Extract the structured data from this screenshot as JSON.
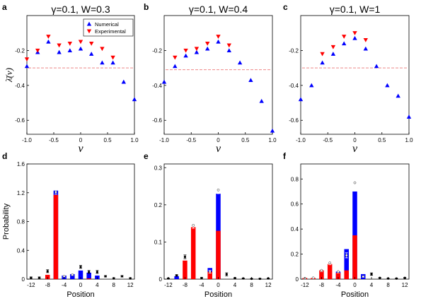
{
  "chart_data": [
    {
      "panel": "a",
      "type": "scatter",
      "title": "γ=0.1, W=0.3",
      "xlabel": "v",
      "ylabel": "λ̄(v)",
      "xlim": [
        -1.0,
        1.0
      ],
      "ylim": [
        -0.68,
        0.0
      ],
      "xticks": [
        "-1.0",
        "-0.5",
        "0",
        "0.5",
        "1.0"
      ],
      "yticks": [
        "-0.2",
        "-0.4",
        "-0.6"
      ],
      "reference_line": -0.3,
      "legend": {
        "position": "top-right",
        "entries": [
          "Numerical",
          "Experimental"
        ]
      },
      "series": [
        {
          "name": "Numerical",
          "marker": "triangle-up",
          "x": [
            -1.0,
            -0.8,
            -0.6,
            -0.4,
            -0.2,
            0.0,
            0.2,
            0.4,
            0.6,
            0.8,
            1.0
          ],
          "y": [
            -0.29,
            -0.21,
            -0.15,
            -0.21,
            -0.2,
            -0.19,
            -0.22,
            -0.27,
            -0.27,
            -0.38,
            -0.48
          ]
        },
        {
          "name": "Experimental",
          "marker": "triangle-down",
          "x": [
            -1.0,
            -0.8,
            -0.6,
            -0.4,
            -0.2,
            0.0,
            0.2,
            0.4,
            0.6
          ],
          "y": [
            -0.25,
            -0.2,
            -0.12,
            -0.17,
            -0.16,
            -0.15,
            -0.16,
            -0.19,
            -0.24
          ]
        }
      ]
    },
    {
      "panel": "b",
      "type": "scatter",
      "title": "γ=0.1, W=0.4",
      "xlabel": "v",
      "xlim": [
        -1.0,
        1.0
      ],
      "ylim": [
        -0.68,
        0.0
      ],
      "xticks": [
        "-1.0",
        "-0.5",
        "0",
        "0.5",
        "1.0"
      ],
      "yticks": [
        "-0.2",
        "-0.4",
        "-0.6"
      ],
      "reference_line": -0.31,
      "series": [
        {
          "name": "Numerical",
          "marker": "triangle-up",
          "x": [
            -1.0,
            -0.8,
            -0.6,
            -0.4,
            -0.2,
            0.0,
            0.2,
            0.4,
            0.6,
            0.8,
            1.0
          ],
          "y": [
            -0.38,
            -0.29,
            -0.23,
            -0.21,
            -0.19,
            -0.15,
            -0.2,
            -0.27,
            -0.37,
            -0.49,
            -0.66
          ]
        },
        {
          "name": "Experimental",
          "marker": "triangle-down",
          "x": [
            -0.8,
            -0.6,
            -0.4,
            -0.2,
            0.0,
            0.2
          ],
          "y": [
            -0.24,
            -0.2,
            -0.19,
            -0.16,
            -0.12,
            -0.17
          ]
        }
      ]
    },
    {
      "panel": "c",
      "type": "scatter",
      "title": "γ=0.1, W=1",
      "xlabel": "v",
      "xlim": [
        -1.0,
        1.0
      ],
      "ylim": [
        -0.68,
        0.0
      ],
      "xticks": [
        "-1.0",
        "-0.5",
        "0",
        "0.5",
        "1.0"
      ],
      "yticks": [
        "-0.2",
        "-0.4",
        "-0.6"
      ],
      "reference_line": -0.3,
      "series": [
        {
          "name": "Numerical",
          "marker": "triangle-up",
          "x": [
            -1.0,
            -0.8,
            -0.6,
            -0.4,
            -0.2,
            0.0,
            0.2,
            0.4,
            0.6,
            0.8,
            1.0
          ],
          "y": [
            -0.48,
            -0.4,
            -0.27,
            -0.22,
            -0.16,
            -0.13,
            -0.19,
            -0.29,
            -0.4,
            -0.46,
            -0.58
          ]
        },
        {
          "name": "Experimental",
          "marker": "triangle-down",
          "x": [
            -0.6,
            -0.4,
            -0.2,
            0.0,
            0.2
          ],
          "y": [
            -0.22,
            -0.18,
            -0.12,
            -0.1,
            -0.14
          ]
        }
      ]
    },
    {
      "panel": "d",
      "type": "bar",
      "xlabel": "Position",
      "ylabel": "Probability",
      "xlim": [
        -13,
        13
      ],
      "ylim": [
        0,
        1.6
      ],
      "xticks": [
        "-12",
        "-8",
        "-4",
        "0",
        "4",
        "8",
        "12"
      ],
      "yticks": [
        "0",
        "0.4",
        "0.8",
        "1.2",
        "1.6"
      ],
      "positions": [
        -12,
        -10,
        -8,
        -6,
        -4,
        -2,
        0,
        2,
        4,
        6,
        8,
        10,
        12
      ],
      "series": [
        {
          "name": "",
          "color": "#ff0000",
          "values": [
            0.0,
            0.0,
            0.06,
            1.17,
            0.0,
            0.0,
            0.0,
            0.01,
            0.0,
            0.0,
            0.0,
            0.0,
            0.0
          ]
        },
        {
          "name": "",
          "color": "#0000ff",
          "values": [
            0.0,
            0.0,
            0.0,
            1.23,
            0.05,
            0.07,
            0.12,
            0.09,
            0.05,
            0.0,
            0.0,
            0.0,
            0.0
          ]
        }
      ],
      "theory": {
        "x": [
          -12,
          -10,
          -8,
          -6,
          -4,
          -2,
          0,
          2,
          4,
          6,
          8,
          10,
          12
        ],
        "y": [
          0.02,
          0.02,
          0.11,
          1.21,
          0.04,
          0.06,
          0.17,
          0.1,
          0.1,
          0.04,
          0.01,
          0.04,
          0.01
        ],
        "err": [
          0.01,
          0.01,
          0.02,
          0.03,
          0.01,
          0.01,
          0.02,
          0.02,
          0.02,
          0.01,
          0.01,
          0.01,
          0.01
        ]
      }
    },
    {
      "panel": "e",
      "type": "bar",
      "xlabel": "Position",
      "xlim": [
        -13,
        13
      ],
      "ylim": [
        0,
        0.31
      ],
      "xticks": [
        "-12",
        "-8",
        "-4",
        "0",
        "4",
        "8",
        "12"
      ],
      "yticks": [
        "0",
        "0.1",
        "0.2",
        "0.3"
      ],
      "positions": [
        -12,
        -10,
        -8,
        -6,
        -4,
        -2,
        0,
        2,
        4,
        6,
        8,
        10,
        12
      ],
      "series": [
        {
          "name": "",
          "color": "#ff0000",
          "values": [
            0.0,
            0.0,
            0.05,
            0.14,
            0.0,
            0.02,
            0.13,
            0.0,
            0.0,
            0.0,
            0.0,
            0.0,
            0.0
          ]
        },
        {
          "name": "",
          "color": "#0000ff",
          "values": [
            0.0,
            0.008,
            0.0,
            0.0,
            0.0,
            0.03,
            0.23,
            0.0,
            0.0,
            0.0,
            0.0,
            0.0,
            0.0
          ]
        }
      ],
      "theory": {
        "x": [
          -12,
          -10,
          -8,
          -6,
          -4,
          -2,
          0,
          2,
          4,
          6,
          8,
          10,
          12
        ],
        "y": [
          0.002,
          0.01,
          0.06,
          0.145,
          0.003,
          0.02,
          0.24,
          0.013,
          0.003,
          0.002,
          0.001,
          0.001,
          0.002
        ],
        "err": [
          0.001,
          0.002,
          0.005,
          0.008,
          0.002,
          0.004,
          0.01,
          0.004,
          0.001,
          0.001,
          0.001,
          0.001,
          0.001
        ]
      }
    },
    {
      "panel": "f",
      "type": "bar",
      "xlabel": "Position",
      "xlim": [
        -13,
        13
      ],
      "ylim": [
        0,
        0.92
      ],
      "xticks": [
        "-12",
        "-8",
        "-4",
        "0",
        "4",
        "8",
        "12"
      ],
      "yticks": [
        "0",
        "0.2",
        "0.4",
        "0.6",
        "0.8"
      ],
      "positions": [
        -12,
        -10,
        -8,
        -6,
        -4,
        -2,
        0,
        2,
        4,
        6,
        8,
        10,
        12
      ],
      "series": [
        {
          "name": "",
          "color": "#ff0000",
          "values": [
            0.01,
            0.01,
            0.07,
            0.12,
            0.05,
            0.07,
            0.35,
            0.0,
            0.0,
            0.0,
            0.0,
            0.0,
            0.0
          ]
        },
        {
          "name": "",
          "color": "#0000ff",
          "values": [
            0.0,
            0.0,
            0.0,
            0.0,
            0.06,
            0.24,
            0.7,
            0.04,
            0.0,
            0.0,
            0.0,
            0.0,
            0.0
          ]
        }
      ],
      "theory": {
        "x": [
          -12,
          -10,
          -8,
          -6,
          -4,
          -2,
          0,
          2,
          4,
          6,
          8,
          10,
          12
        ],
        "y": [
          0.005,
          0.01,
          0.07,
          0.13,
          0.06,
          0.19,
          0.77,
          0.02,
          0.04,
          0.01,
          0.005,
          0.005,
          0.01
        ],
        "err": [
          0.003,
          0.003,
          0.01,
          0.015,
          0.01,
          0.02,
          0.03,
          0.005,
          0.01,
          0.003,
          0.003,
          0.003,
          0.003
        ]
      }
    }
  ]
}
